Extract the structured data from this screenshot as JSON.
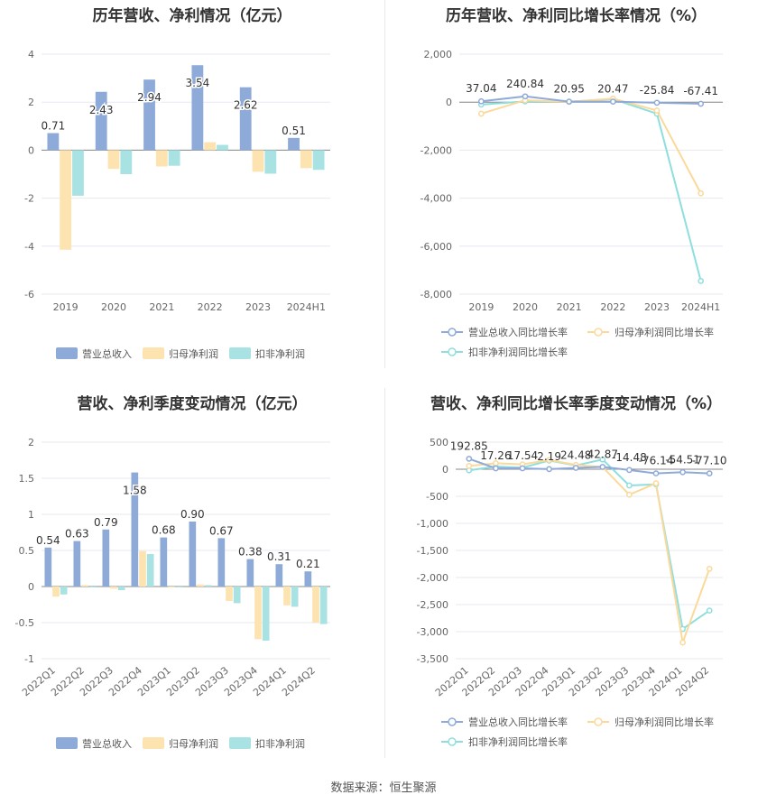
{
  "colors": {
    "revenue": "#8eaad9",
    "net_profit": "#fde3b0",
    "deducted_profit": "#a9e2e3",
    "revenue_line": "#8eaad9",
    "net_profit_line": "#fbd99a",
    "deducted_profit_line": "#8fdede",
    "grid": "#e6e9ef",
    "axis_text": "#666666"
  },
  "footer": {
    "source": "数据来源：恒生聚源"
  },
  "chart_data": [
    {
      "id": "annual_amount",
      "type": "bar",
      "title": "历年营收、净利情况（亿元）",
      "categories": [
        "2019",
        "2020",
        "2021",
        "2022",
        "2023",
        "2024H1"
      ],
      "series": [
        {
          "name": "营业总收入",
          "values": [
            0.71,
            2.43,
            2.94,
            3.54,
            2.62,
            0.51
          ]
        },
        {
          "name": "归母净利润",
          "values": [
            -4.15,
            -0.78,
            -0.68,
            0.33,
            -0.9,
            -0.75
          ]
        },
        {
          "name": "扣非净利润",
          "values": [
            -1.9,
            -1.0,
            -0.65,
            0.22,
            -0.98,
            -0.82
          ]
        }
      ],
      "data_labels": [
        "0.71",
        "2.43",
        "2.94",
        "3.54",
        "2.62",
        "0.51"
      ],
      "ylim": [
        -6,
        4
      ],
      "yticks": [
        4,
        2,
        0,
        -2,
        -4,
        -6
      ],
      "grid": true,
      "legend": "bottom"
    },
    {
      "id": "annual_growth",
      "type": "line",
      "title": "历年营收、净利同比增长率情况（%）",
      "categories": [
        "2019",
        "2020",
        "2021",
        "2022",
        "2023",
        "2024H1"
      ],
      "series": [
        {
          "name": "营业总收入同比增长率",
          "values": [
            37.04,
            240.84,
            20.95,
            20.47,
            -25.84,
            -67.41
          ]
        },
        {
          "name": "归母净利润同比增长率",
          "values": [
            -480,
            80,
            10,
            150,
            -350,
            -3800
          ]
        },
        {
          "name": "扣非净利润同比增长率",
          "values": [
            -100,
            30,
            20,
            130,
            -480,
            -7450
          ]
        }
      ],
      "data_labels": [
        "37.04",
        "240.84",
        "20.95",
        "20.47",
        "-25.84",
        "-67.41"
      ],
      "ylim": [
        -8000,
        2000
      ],
      "yticks": [
        "2,000",
        "0",
        "-2,000",
        "-4,000",
        "-6,000",
        "-8,000"
      ],
      "grid": true,
      "legend": "bottom"
    },
    {
      "id": "quarterly_amount",
      "type": "bar",
      "title": "营收、净利季度变动情况（亿元）",
      "categories": [
        "2022Q1",
        "2022Q2",
        "2022Q3",
        "2022Q4",
        "2023Q1",
        "2023Q2",
        "2023Q3",
        "2023Q4",
        "2024Q1",
        "2024Q2"
      ],
      "series": [
        {
          "name": "营业总收入",
          "values": [
            0.54,
            0.63,
            0.79,
            1.58,
            0.68,
            0.9,
            0.67,
            0.38,
            0.31,
            0.21
          ]
        },
        {
          "name": "归母净利润",
          "values": [
            -0.14,
            0.02,
            -0.03,
            0.49,
            -0.01,
            0.03,
            -0.2,
            -0.73,
            -0.26,
            -0.5
          ]
        },
        {
          "name": "扣非净利润",
          "values": [
            -0.11,
            -0.01,
            -0.05,
            0.45,
            -0.01,
            0.02,
            -0.23,
            -0.75,
            -0.28,
            -0.52
          ]
        }
      ],
      "data_labels": [
        "0.54",
        "0.63",
        "0.79",
        "1.58",
        "0.68",
        "0.90",
        "0.67",
        "0.38",
        "0.31",
        "0.21"
      ],
      "ylim": [
        -1,
        2
      ],
      "yticks": [
        "2",
        "1.5",
        "1",
        "0.5",
        "0",
        "-0.5",
        "-1"
      ],
      "grid": true,
      "legend": "bottom"
    },
    {
      "id": "quarterly_growth",
      "type": "line",
      "title": "营收、净利同比增长率季度变动情况（%）",
      "categories": [
        "2022Q1",
        "2022Q2",
        "2022Q3",
        "2022Q4",
        "2023Q1",
        "2023Q2",
        "2023Q3",
        "2023Q4",
        "2024Q1",
        "2024Q2"
      ],
      "series": [
        {
          "name": "营业总收入同比增长率",
          "values": [
            192.85,
            17.26,
            17.54,
            2.19,
            24.48,
            42.87,
            -14.48,
            -76.14,
            -54.51,
            -77.1
          ]
        },
        {
          "name": "归母净利润同比增长率",
          "values": [
            60,
            110,
            90,
            170,
            80,
            40,
            -470,
            -260,
            -3200,
            -1840
          ]
        },
        {
          "name": "扣非净利润同比增长率",
          "values": [
            -20,
            50,
            30,
            160,
            70,
            180,
            -300,
            -280,
            -2950,
            -2610
          ]
        }
      ],
      "data_labels": [
        "192.85",
        "17.26",
        "17.54",
        "2.19",
        "24.48",
        "42.87",
        "-14.48",
        "-76.14",
        "-54.51",
        "-77.10"
      ],
      "ylim": [
        -3500,
        500
      ],
      "yticks": [
        "500",
        "0",
        "-500",
        "-1,000",
        "-1,500",
        "-2,000",
        "-2,500",
        "-3,000",
        "-3,500"
      ],
      "grid": true,
      "legend": "bottom"
    }
  ]
}
